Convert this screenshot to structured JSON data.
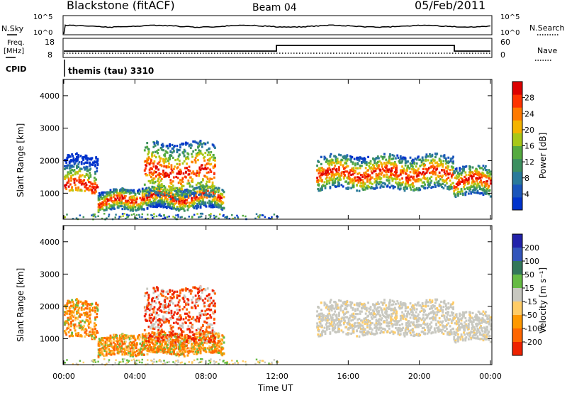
{
  "header": {
    "station": "Blackstone (fitACF)",
    "beam": "Beam 04",
    "date": "05/Feb/2011"
  },
  "noise_panel": {
    "left_label": "N.Sky",
    "right_label": "N.Search",
    "left_ticks": [
      "10^5",
      "10^0"
    ],
    "right_ticks": [
      "10^5",
      "10^0"
    ]
  },
  "freq_panel": {
    "left_label_1": "Freq.",
    "left_label_2": "[MHz]",
    "cpid_label": "CPID",
    "right_label": "Nave",
    "left_ticks": [
      "18",
      "8"
    ],
    "right_ticks": [
      "60",
      "0"
    ],
    "cpid_text": "themis (tau) 3310"
  },
  "colors": {
    "power_scale": [
      "#0033cc",
      "#1a55bb",
      "#2a7a9a",
      "#3c8f60",
      "#55aa40",
      "#a8c818",
      "#f4b400",
      "#ff7a00",
      "#ff3300",
      "#dd0000"
    ],
    "velocity_scale": [
      "#2222aa",
      "#3355bb",
      "#33775a",
      "#66bb44",
      "#c8c8c0",
      "#ffcc66",
      "#ff9900",
      "#ff6600",
      "#ee2200"
    ]
  },
  "chart_data": [
    {
      "type": "heatmap",
      "name": "Power",
      "ylabel": "Slant Range [km]",
      "y_ticks": [
        "1000",
        "2000",
        "3000",
        "4000"
      ],
      "ylim": [
        200,
        4500
      ],
      "colorbar_label": "Power [dB]",
      "colorbar_ticks": [
        "4",
        "8",
        "12",
        "16",
        "20",
        "24",
        "28"
      ],
      "colorbar_range": [
        0,
        32
      ]
    },
    {
      "type": "heatmap",
      "name": "Velocity",
      "ylabel": "Slant Range [km]",
      "y_ticks": [
        "1000",
        "2000",
        "3000",
        "4000"
      ],
      "ylim": [
        200,
        4500
      ],
      "colorbar_label": "Velocity [m s⁻¹]",
      "colorbar_ticks": [
        "200",
        "100",
        "50",
        "15",
        "-15",
        "-50",
        "-100",
        "-200"
      ]
    }
  ],
  "x_axis": {
    "label": "Time UT",
    "ticks": [
      "00:00",
      "04:00",
      "08:00",
      "12:00",
      "16:00",
      "20:00",
      "00:00"
    ],
    "range_hours": [
      0,
      24
    ]
  },
  "scatter_bands": [
    {
      "t0": 0.0,
      "t1": 1.9,
      "r0": 1050,
      "r1": 2200,
      "center": 1250,
      "kind": "low"
    },
    {
      "t0": 1.9,
      "t1": 3.2,
      "r0": 500,
      "r1": 1100,
      "center": 750,
      "kind": "low"
    },
    {
      "t0": 3.2,
      "t1": 9.0,
      "r0": 550,
      "r1": 1200,
      "center": 900,
      "kind": "low"
    },
    {
      "t0": 4.5,
      "t1": 8.5,
      "r0": 900,
      "r1": 2600,
      "center": 1700,
      "kind": "high"
    },
    {
      "t0": 14.2,
      "t1": 21.9,
      "r0": 1150,
      "r1": 2200,
      "center": 1650,
      "kind": "mid"
    },
    {
      "t0": 21.9,
      "t1": 24.0,
      "r0": 950,
      "r1": 1850,
      "center": 1400,
      "kind": "mid"
    }
  ]
}
